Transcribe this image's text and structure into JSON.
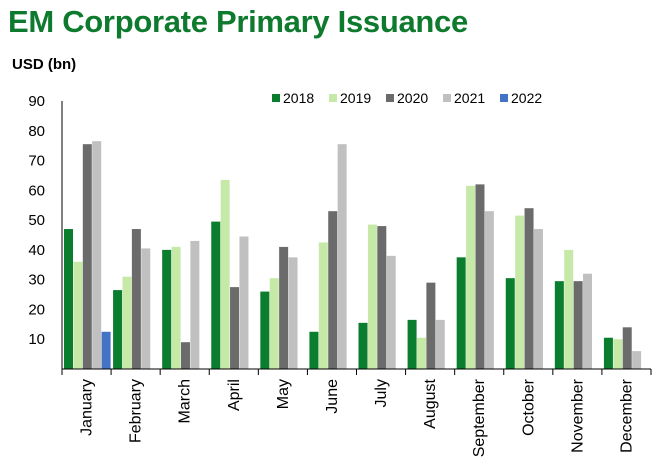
{
  "title": "EM Corporate Primary Issuance",
  "chart_data": {
    "type": "bar",
    "title": "EM Corporate Primary Issuance",
    "ylabel": "USD (bn)",
    "xlabel": "",
    "ylim": [
      0,
      90
    ],
    "yticks": [
      10,
      20,
      30,
      40,
      50,
      60,
      70,
      80,
      90
    ],
    "grid": false,
    "legend_position": "top",
    "categories": [
      "January",
      "February",
      "March",
      "April",
      "May",
      "June",
      "July",
      "August",
      "September",
      "October",
      "November",
      "December"
    ],
    "series": [
      {
        "name": "2018",
        "color": "#0b7d2e",
        "values": [
          47,
          26.5,
          40,
          49.5,
          26,
          12.5,
          15.5,
          16.5,
          37.5,
          30.5,
          29.5,
          10.5
        ]
      },
      {
        "name": "2019",
        "color": "#c6e9a8",
        "values": [
          36,
          31,
          41,
          63.5,
          30.5,
          42.5,
          48.5,
          10.5,
          61.5,
          51.5,
          40,
          10
        ]
      },
      {
        "name": "2020",
        "color": "#6b6b6b",
        "values": [
          75.5,
          47,
          9,
          27.5,
          41,
          53,
          48,
          29,
          62,
          54,
          29.5,
          14
        ]
      },
      {
        "name": "2021",
        "color": "#c0c0c0",
        "values": [
          76.5,
          40.5,
          43,
          44.5,
          37.5,
          75.5,
          38,
          16.5,
          53,
          47,
          32,
          6
        ]
      },
      {
        "name": "2022",
        "color": "#4472c4",
        "values": [
          12.5,
          null,
          null,
          null,
          null,
          null,
          null,
          null,
          null,
          null,
          null,
          null
        ]
      }
    ]
  }
}
